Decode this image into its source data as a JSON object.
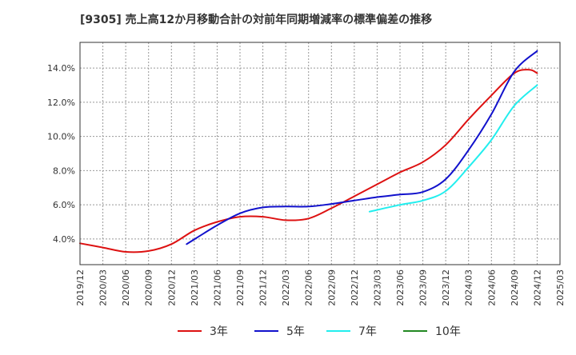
{
  "chart_data": {
    "type": "line",
    "title": "[9305]  売上高12か月移動合計の対前年同期増減率の標準偏差の推移",
    "xlabel": "",
    "ylabel": "",
    "x_ticks": [
      "2019/12",
      "2020/03",
      "2020/06",
      "2020/09",
      "2020/12",
      "2021/03",
      "2021/06",
      "2021/09",
      "2021/12",
      "2022/03",
      "2022/06",
      "2022/09",
      "2022/12",
      "2023/03",
      "2023/06",
      "2023/09",
      "2023/12",
      "2024/03",
      "2024/06",
      "2024/09",
      "2024/12",
      "2025/03"
    ],
    "y_ticks": [
      "4.0%",
      "6.0%",
      "8.0%",
      "10.0%",
      "12.0%",
      "14.0%"
    ],
    "xlim": [
      "2019/12",
      "2025/03"
    ],
    "ylim": [
      2.5,
      15.5
    ],
    "grid": true,
    "legend_position": "bottom",
    "series": [
      {
        "name": "3年",
        "color": "#dd1111",
        "points": [
          [
            "2019/12",
            3.75
          ],
          [
            "2020/03",
            3.5
          ],
          [
            "2020/06",
            3.25
          ],
          [
            "2020/09",
            3.3
          ],
          [
            "2020/12",
            3.7
          ],
          [
            "2021/03",
            4.5
          ],
          [
            "2021/06",
            5.0
          ],
          [
            "2021/09",
            5.3
          ],
          [
            "2021/12",
            5.3
          ],
          [
            "2022/03",
            5.1
          ],
          [
            "2022/06",
            5.2
          ],
          [
            "2022/09",
            5.8
          ],
          [
            "2022/12",
            6.5
          ],
          [
            "2023/03",
            7.2
          ],
          [
            "2023/06",
            7.9
          ],
          [
            "2023/09",
            8.5
          ],
          [
            "2023/12",
            9.5
          ],
          [
            "2024/03",
            11.0
          ],
          [
            "2024/06",
            12.4
          ],
          [
            "2024/09",
            13.7
          ],
          [
            "2024/11",
            13.9
          ],
          [
            "2024/12",
            13.7
          ]
        ]
      },
      {
        "name": "5年",
        "color": "#1111cc",
        "points": [
          [
            "2021/02",
            3.7
          ],
          [
            "2021/06",
            4.8
          ],
          [
            "2021/09",
            5.5
          ],
          [
            "2021/12",
            5.85
          ],
          [
            "2022/03",
            5.9
          ],
          [
            "2022/06",
            5.9
          ],
          [
            "2022/09",
            6.05
          ],
          [
            "2022/12",
            6.25
          ],
          [
            "2023/03",
            6.45
          ],
          [
            "2023/06",
            6.6
          ],
          [
            "2023/09",
            6.75
          ],
          [
            "2023/12",
            7.5
          ],
          [
            "2024/03",
            9.2
          ],
          [
            "2024/06",
            11.3
          ],
          [
            "2024/09",
            13.8
          ],
          [
            "2024/12",
            15.0
          ]
        ]
      },
      {
        "name": "7年",
        "color": "#22eeee",
        "points": [
          [
            "2023/02",
            5.6
          ],
          [
            "2023/06",
            6.0
          ],
          [
            "2023/09",
            6.25
          ],
          [
            "2023/12",
            6.8
          ],
          [
            "2024/03",
            8.2
          ],
          [
            "2024/06",
            9.8
          ],
          [
            "2024/09",
            11.8
          ],
          [
            "2024/12",
            13.0
          ]
        ]
      },
      {
        "name": "10年",
        "color": "#228822",
        "points": []
      }
    ]
  }
}
